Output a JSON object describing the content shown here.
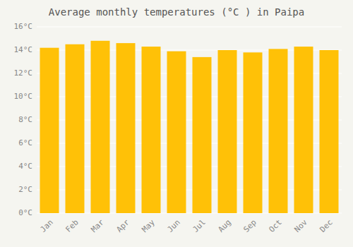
{
  "chart_data": {
    "type": "bar",
    "title": "Average monthly temperatures (°C ) in Paipa",
    "categories": [
      "Jan",
      "Feb",
      "Mar",
      "Apr",
      "May",
      "Jun",
      "Jul",
      "Aug",
      "Sep",
      "Oct",
      "Nov",
      "Dec"
    ],
    "values": [
      14.2,
      14.5,
      14.8,
      14.6,
      14.3,
      13.9,
      13.4,
      14.0,
      13.8,
      14.1,
      14.3,
      14.0
    ],
    "color": "#FFC107",
    "ylim": [
      0,
      16
    ],
    "yticks": [
      {
        "value": 0,
        "label": "0°C"
      },
      {
        "value": 2,
        "label": "2°C"
      },
      {
        "value": 4,
        "label": "4°C"
      },
      {
        "value": 6,
        "label": "6°C"
      },
      {
        "value": 8,
        "label": "8°C"
      },
      {
        "value": 10,
        "label": "10°C"
      },
      {
        "value": 12,
        "label": "12°C"
      },
      {
        "value": 14,
        "label": "14°C"
      },
      {
        "value": 16,
        "label": "16°C"
      }
    ],
    "grid": true
  }
}
